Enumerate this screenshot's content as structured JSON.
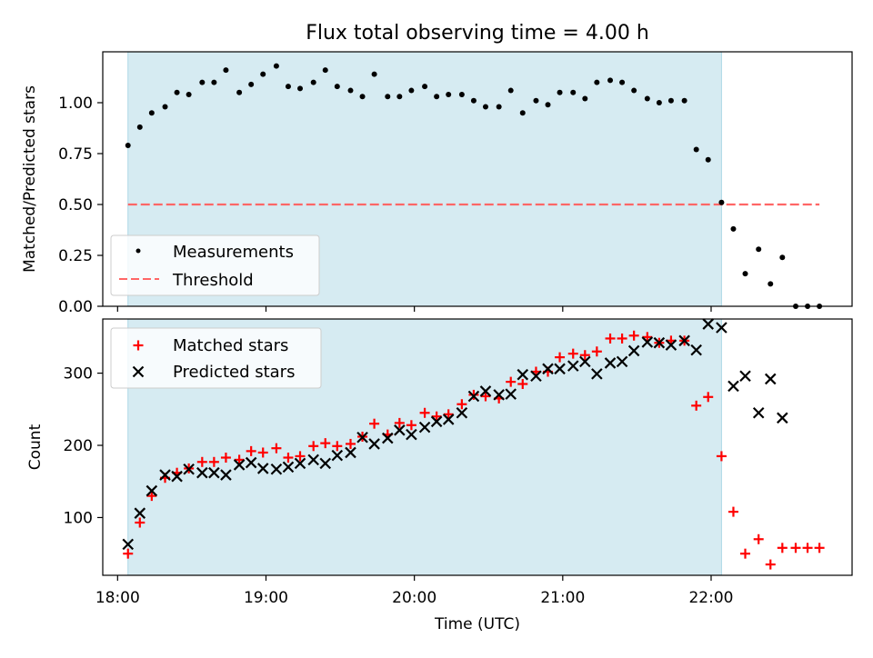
{
  "title": "Flux total observing time = 4.00 h",
  "colors": {
    "shade": "#add8e6",
    "matched": "#ff0000",
    "predicted": "#000000",
    "threshold": "#ff6666"
  },
  "chart_data": [
    {
      "type": "scatter",
      "ylabel": "Matched/Predicted stars",
      "xlim_hours": [
        17.9,
        22.95
      ],
      "ylim": [
        0,
        1.25
      ],
      "yticks": [
        "0.00",
        "0.25",
        "0.50",
        "0.75",
        "1.00"
      ],
      "ytick_values": [
        0,
        0.25,
        0.5,
        0.75,
        1.0
      ],
      "shaded_span_hours": [
        18.07,
        22.07
      ],
      "legend_position": "lower left",
      "threshold": {
        "name": "Threshold",
        "y": 0.5,
        "x_hours": [
          18.07,
          22.73
        ]
      },
      "series": [
        {
          "name": "Measurements",
          "x_hours": [
            18.07,
            18.15,
            18.23,
            18.32,
            18.4,
            18.48,
            18.57,
            18.65,
            18.73,
            18.82,
            18.9,
            18.98,
            19.07,
            19.15,
            19.23,
            19.32,
            19.4,
            19.48,
            19.57,
            19.65,
            19.73,
            19.82,
            19.9,
            19.98,
            20.07,
            20.15,
            20.23,
            20.32,
            20.4,
            20.48,
            20.57,
            20.65,
            20.73,
            20.82,
            20.9,
            20.98,
            21.07,
            21.15,
            21.23,
            21.32,
            21.4,
            21.48,
            21.57,
            21.65,
            21.73,
            21.82,
            21.9,
            21.98,
            22.07,
            22.15,
            22.23,
            22.32,
            22.4,
            22.48,
            22.57,
            22.65,
            22.73
          ],
          "y": [
            0.79,
            0.88,
            0.95,
            0.98,
            1.05,
            1.04,
            1.1,
            1.1,
            1.16,
            1.05,
            1.09,
            1.14,
            1.18,
            1.08,
            1.07,
            1.1,
            1.16,
            1.08,
            1.06,
            1.03,
            1.14,
            1.03,
            1.03,
            1.06,
            1.08,
            1.03,
            1.04,
            1.04,
            1.01,
            0.98,
            0.98,
            1.06,
            0.95,
            1.01,
            0.99,
            1.05,
            1.05,
            1.02,
            1.1,
            1.11,
            1.1,
            1.06,
            1.02,
            1.0,
            1.01,
            1.01,
            0.77,
            0.72,
            0.51,
            0.38,
            0.16,
            0.28,
            0.11,
            0.24,
            0.0,
            0.0,
            0.0
          ]
        }
      ]
    },
    {
      "type": "scatter",
      "ylabel": "Count",
      "xlabel": "Time (UTC)",
      "xlim_hours": [
        17.9,
        22.95
      ],
      "xticks": [
        "18:00",
        "19:00",
        "20:00",
        "21:00",
        "22:00"
      ],
      "xtick_values": [
        18,
        19,
        20,
        21,
        22
      ],
      "ylim": [
        20,
        375
      ],
      "yticks": [
        "100",
        "200",
        "300"
      ],
      "ytick_values": [
        100,
        200,
        300
      ],
      "shaded_span_hours": [
        18.07,
        22.07
      ],
      "legend_position": "upper left",
      "series": [
        {
          "name": "Matched stars",
          "x_hours": [
            18.07,
            18.15,
            18.23,
            18.32,
            18.4,
            18.48,
            18.57,
            18.65,
            18.73,
            18.82,
            18.9,
            18.98,
            19.07,
            19.15,
            19.23,
            19.32,
            19.4,
            19.48,
            19.57,
            19.65,
            19.73,
            19.82,
            19.9,
            19.98,
            20.07,
            20.15,
            20.23,
            20.32,
            20.4,
            20.48,
            20.57,
            20.65,
            20.73,
            20.82,
            20.9,
            20.98,
            21.07,
            21.15,
            21.23,
            21.32,
            21.4,
            21.48,
            21.57,
            21.65,
            21.73,
            21.82,
            21.9,
            21.98,
            22.07,
            22.15,
            22.23,
            22.32,
            22.4,
            22.48,
            22.57,
            22.65,
            22.73
          ],
          "y": [
            50,
            93,
            130,
            155,
            162,
            168,
            177,
            177,
            183,
            180,
            192,
            190,
            196,
            183,
            185,
            199,
            203,
            199,
            202,
            212,
            230,
            215,
            231,
            228,
            245,
            240,
            243,
            257,
            270,
            268,
            265,
            288,
            285,
            302,
            302,
            322,
            327,
            325,
            330,
            348,
            348,
            352,
            350,
            342,
            345,
            345,
            255,
            267,
            185,
            108,
            50,
            70,
            35,
            58,
            58,
            58,
            58
          ]
        },
        {
          "name": "Predicted stars",
          "x_hours": [
            18.07,
            18.15,
            18.23,
            18.32,
            18.4,
            18.48,
            18.57,
            18.65,
            18.73,
            18.82,
            18.9,
            18.98,
            19.07,
            19.15,
            19.23,
            19.32,
            19.4,
            19.48,
            19.57,
            19.65,
            19.73,
            19.82,
            19.9,
            19.98,
            20.07,
            20.15,
            20.23,
            20.32,
            20.4,
            20.48,
            20.57,
            20.65,
            20.73,
            20.82,
            20.9,
            20.98,
            21.07,
            21.15,
            21.23,
            21.32,
            21.4,
            21.48,
            21.57,
            21.65,
            21.73,
            21.82,
            21.9,
            21.98,
            22.07,
            22.15,
            22.23,
            22.32,
            22.4,
            22.48
          ],
          "y": [
            63,
            106,
            137,
            159,
            157,
            167,
            162,
            162,
            159,
            173,
            176,
            168,
            167,
            170,
            175,
            180,
            175,
            186,
            190,
            211,
            202,
            210,
            221,
            215,
            225,
            233,
            236,
            245,
            268,
            275,
            270,
            271,
            298,
            296,
            306,
            306,
            310,
            316,
            299,
            314,
            316,
            331,
            343,
            342,
            339,
            345,
            332,
            368,
            363,
            282,
            296,
            245,
            292,
            238
          ]
        }
      ]
    }
  ]
}
